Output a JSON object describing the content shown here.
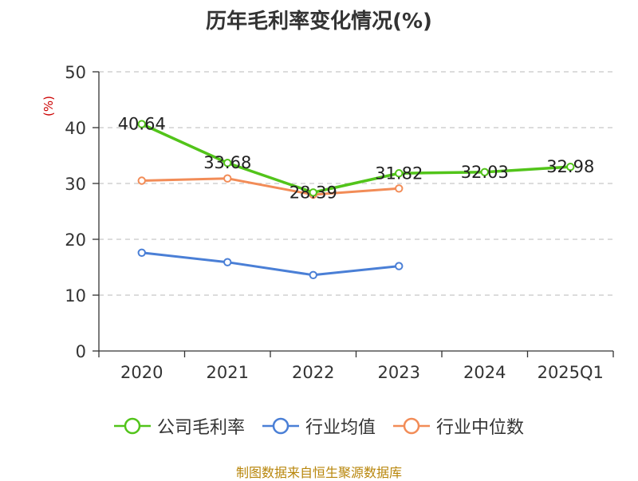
{
  "chart_data": {
    "type": "line",
    "title": "历年毛利率变化情况(%)",
    "ylabel": "(%)",
    "xlabel": "",
    "categories": [
      "2020",
      "2021",
      "2022",
      "2023",
      "2024",
      "2025Q1"
    ],
    "ylim": [
      0,
      50
    ],
    "yticks": [
      0,
      10,
      20,
      30,
      40,
      50
    ],
    "grid": true,
    "legend_position": "bottom",
    "series": [
      {
        "name": "公司毛利率",
        "color": "#52c41a",
        "values": [
          40.64,
          33.68,
          28.39,
          31.82,
          32.03,
          32.98
        ],
        "labels": [
          "40.64",
          "33.68",
          "28.39",
          "31.82",
          "32.03",
          "32.98"
        ]
      },
      {
        "name": "行业均值",
        "color": "#4a7fd6",
        "values": [
          17.6,
          15.9,
          13.6,
          15.2,
          null,
          null
        ]
      },
      {
        "name": "行业中位数",
        "color": "#f28c57",
        "values": [
          30.5,
          30.9,
          28.0,
          29.1,
          null,
          null
        ]
      }
    ]
  },
  "footer": {
    "source": "制图数据来自恒生聚源数据库"
  }
}
